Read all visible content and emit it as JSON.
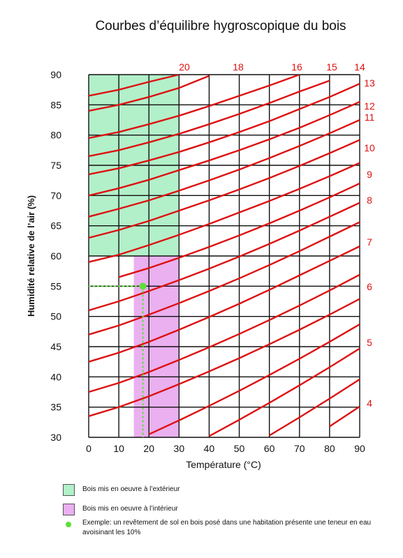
{
  "chart_data": {
    "type": "line",
    "title": "Courbes d’équilibre hygroscopique du bois",
    "xlabel": "Température (°C)",
    "ylabel": "Humidité relative de l’air (%)",
    "xlim": [
      0,
      90
    ],
    "ylim": [
      30,
      90
    ],
    "x_ticks": [
      0,
      10,
      20,
      30,
      40,
      50,
      60,
      70,
      80,
      90
    ],
    "y_ticks": [
      30,
      35,
      40,
      45,
      50,
      55,
      60,
      65,
      70,
      75,
      80,
      85,
      90
    ],
    "grid": true,
    "x": [
      0,
      10,
      20,
      30,
      40,
      50,
      60,
      70,
      80,
      90
    ],
    "series": [
      {
        "name": "20",
        "values": [
          86.5,
          87.5,
          88.8,
          90.0,
          null,
          null,
          null,
          null,
          null,
          null
        ]
      },
      {
        "name": "18",
        "values": [
          84.0,
          85.0,
          86.3,
          87.8,
          89.8,
          null,
          null,
          null,
          null,
          null
        ]
      },
      {
        "name": "16",
        "values": [
          79.5,
          80.5,
          81.8,
          83.2,
          84.8,
          86.5,
          88.2,
          90.0,
          null,
          null
        ]
      },
      {
        "name": "15",
        "values": [
          76.5,
          77.5,
          78.8,
          80.2,
          81.8,
          83.5,
          85.3,
          87.2,
          89.0,
          null
        ]
      },
      {
        "name": "14",
        "values": [
          73.5,
          74.5,
          75.8,
          77.2,
          78.8,
          80.5,
          82.3,
          84.3,
          86.3,
          88.5
        ]
      },
      {
        "name": "13",
        "values": [
          70.0,
          71.2,
          72.6,
          74.2,
          75.8,
          77.5,
          79.3,
          81.2,
          83.3,
          85.5
        ]
      },
      {
        "name": "12",
        "values": [
          66.5,
          67.8,
          69.2,
          70.8,
          72.5,
          74.3,
          76.2,
          78.2,
          80.3,
          82.5
        ]
      },
      {
        "name": "11",
        "values": [
          63.0,
          64.3,
          65.8,
          67.5,
          69.2,
          71.0,
          72.9,
          74.9,
          77.0,
          79.2
        ]
      },
      {
        "name": "10",
        "values": [
          59.0,
          60.2,
          61.8,
          63.5,
          65.3,
          67.2,
          69.1,
          71.1,
          73.2,
          75.4
        ]
      },
      {
        "name": "9",
        "values": [
          null,
          56.5,
          58.0,
          59.7,
          61.5,
          63.4,
          65.4,
          67.5,
          69.7,
          72.0
        ]
      },
      {
        "name": "8",
        "values": [
          51.0,
          52.5,
          54.2,
          56.0,
          57.9,
          59.9,
          62.0,
          64.2,
          66.5,
          68.8
        ]
      },
      {
        "name": "7",
        "values": [
          47.0,
          48.5,
          50.3,
          52.2,
          54.2,
          56.3,
          58.5,
          60.8,
          63.2,
          65.6
        ]
      },
      {
        "name": "6",
        "values": [
          42.5,
          44.0,
          45.8,
          47.8,
          49.9,
          52.1,
          54.4,
          56.8,
          59.2,
          61.6
        ]
      },
      {
        "name": "5",
        "values": [
          37.5,
          39.0,
          40.8,
          42.8,
          44.9,
          47.1,
          49.4,
          51.8,
          54.3,
          56.9
        ]
      },
      {
        "name": "4",
        "values": [
          33.5,
          35.0,
          36.8,
          38.8,
          40.9,
          43.1,
          45.4,
          47.8,
          50.3,
          52.9
        ]
      },
      {
        "name": "",
        "values": [
          null,
          null,
          30.5,
          32.8,
          35.2,
          37.7,
          40.3,
          43.0,
          45.8,
          48.7
        ]
      },
      {
        "name": "",
        "values": [
          null,
          null,
          null,
          null,
          30.2,
          32.9,
          35.7,
          38.6,
          41.6,
          44.7
        ]
      },
      {
        "name": "",
        "values": [
          null,
          null,
          null,
          null,
          null,
          null,
          30.3,
          33.3,
          36.4,
          39.6
        ]
      },
      {
        "name": "",
        "values": [
          null,
          null,
          null,
          null,
          null,
          null,
          null,
          null,
          31.8,
          35.1
        ]
      }
    ],
    "top_labels": [
      "20",
      "18",
      "16",
      "15",
      "14"
    ],
    "right_labels": [
      "13",
      "12",
      "11",
      "10",
      "9",
      "8",
      "7",
      "6",
      "5",
      "4"
    ],
    "regions": [
      {
        "name": "exterieur",
        "x_range": [
          0,
          30
        ],
        "y_range": [
          60,
          90
        ],
        "color": "#b2f0c9"
      },
      {
        "name": "interieur",
        "x_range": [
          15,
          30
        ],
        "y_range": [
          30,
          60
        ],
        "color": "#eab0f0"
      }
    ],
    "example_point": {
      "x": 18,
      "y": 55,
      "color": "#5ddf3a"
    },
    "curve_color": "#dd1111",
    "label_color": "#dd1111"
  },
  "legend": {
    "exterior": "Bois mis en oeuvre à l’extérieur",
    "interior": "Bois mis en oeuvre à l’intérieur",
    "example": "Exemple: un revêtement de sol en bois posé dans une habitation présente une teneur en eau avoisinant les 10%"
  }
}
